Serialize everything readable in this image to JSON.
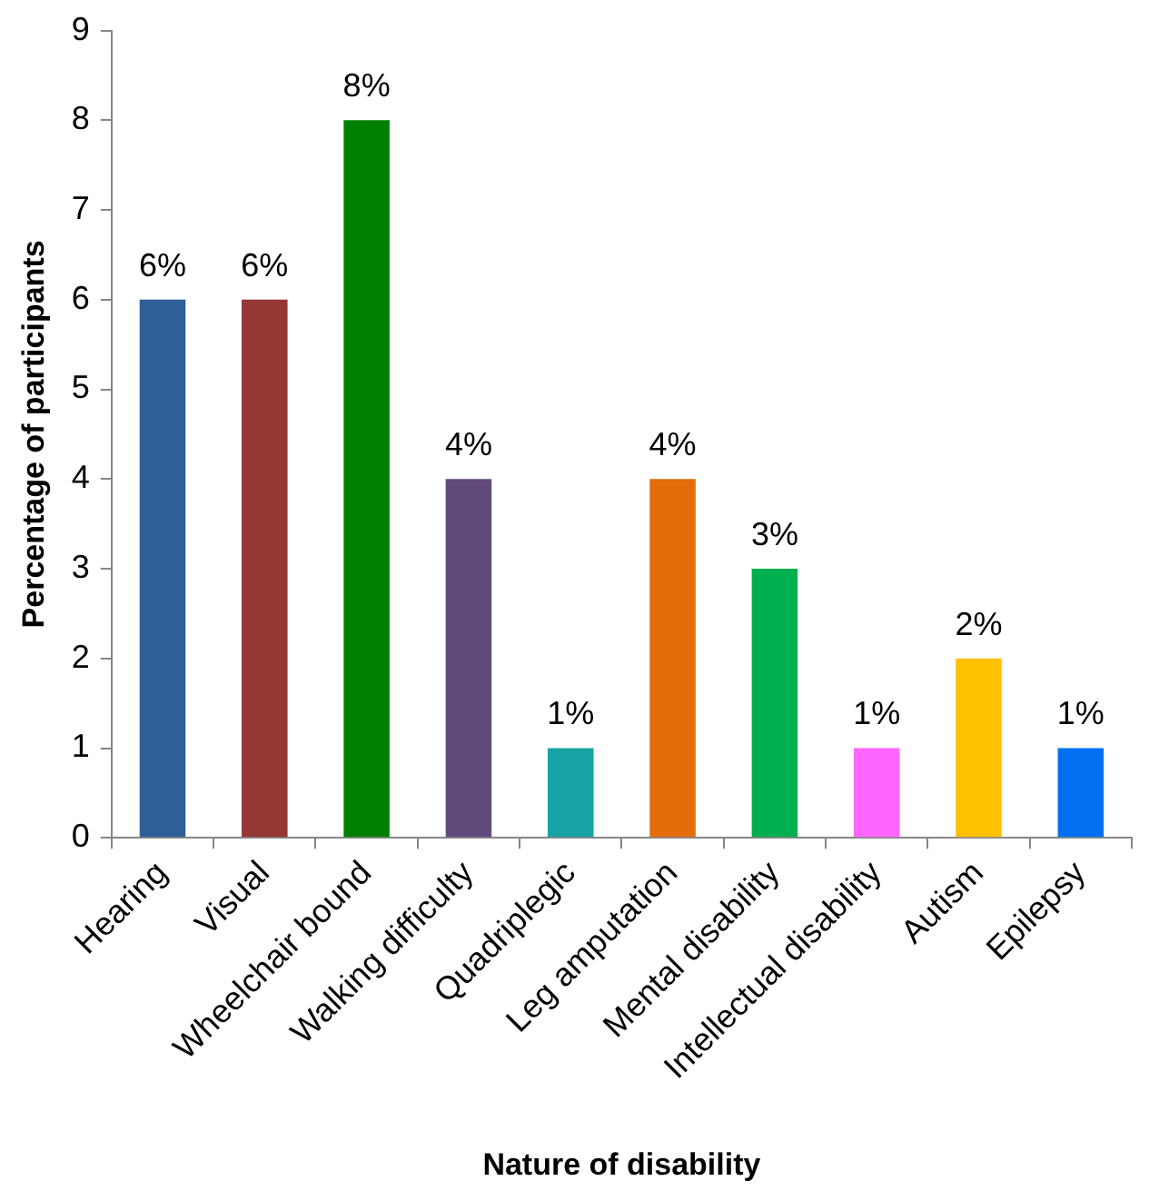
{
  "chart_data": {
    "type": "bar",
    "xlabel": "Nature of disability",
    "ylabel": "Percentage of participants",
    "categories": [
      "Hearing",
      "Visual",
      "Wheelchair bound",
      "Walking difficulty",
      "Quadriplegic",
      "Leg amputation",
      "Mental disability",
      "Intellectual disability",
      "Autism",
      "Epilepsy"
    ],
    "values": [
      6,
      6,
      8,
      4,
      1,
      4,
      3,
      1,
      2,
      1
    ],
    "colors": [
      "#2f5f98",
      "#953735",
      "#008000",
      "#604a7b",
      "#17a3a3",
      "#e46c0a",
      "#00b050",
      "#ff66ff",
      "#ffc000",
      "#0070f0"
    ],
    "value_labels": [
      "6%",
      "6%",
      "8%",
      "4%",
      "1%",
      "4%",
      "3%",
      "1%",
      "2%",
      "1%"
    ],
    "ylim": [
      0,
      9
    ],
    "yticks": [
      0,
      1,
      2,
      3,
      4,
      5,
      6,
      7,
      8,
      9
    ],
    "grid": false,
    "legend": false
  }
}
